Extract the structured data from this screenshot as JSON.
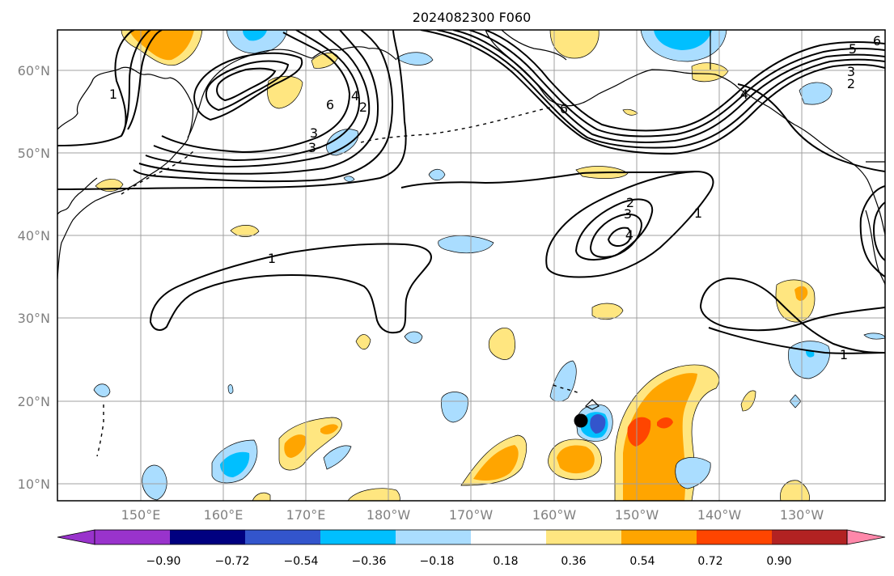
{
  "title": "2024082300 F060",
  "map": {
    "lat_labels": [
      "10°N",
      "20°N",
      "30°N",
      "40°N",
      "50°N",
      "60°N"
    ],
    "lon_labels": [
      "150°E",
      "160°E",
      "170°E",
      "180°W",
      "170°W",
      "160°W",
      "150°W",
      "140°W",
      "130°W"
    ],
    "grid": true
  },
  "contours": {
    "labels": [
      {
        "text": "1"
      },
      {
        "text": "1"
      },
      {
        "text": "1"
      },
      {
        "text": "1"
      },
      {
        "text": "2"
      },
      {
        "text": "2"
      },
      {
        "text": "2"
      },
      {
        "text": "3"
      },
      {
        "text": "3"
      },
      {
        "text": "3"
      },
      {
        "text": "3"
      },
      {
        "text": "4"
      },
      {
        "text": "4"
      },
      {
        "text": "4"
      },
      {
        "text": "5"
      },
      {
        "text": "6"
      },
      {
        "text": "6"
      },
      {
        "text": "6"
      }
    ]
  },
  "colorbar": {
    "colors": [
      "#9933cc",
      "#000080",
      "#3355cc",
      "#00bfff",
      "#aaddff",
      "#ffffff",
      "#ffe680",
      "#ffa500",
      "#ff4500",
      "#b22222",
      "#ff88aa"
    ],
    "labels": [
      "−0.90",
      "−0.72",
      "−0.54",
      "−0.36",
      "−0.18",
      "0.18",
      "0.36",
      "0.54",
      "0.72",
      "0.90"
    ]
  }
}
